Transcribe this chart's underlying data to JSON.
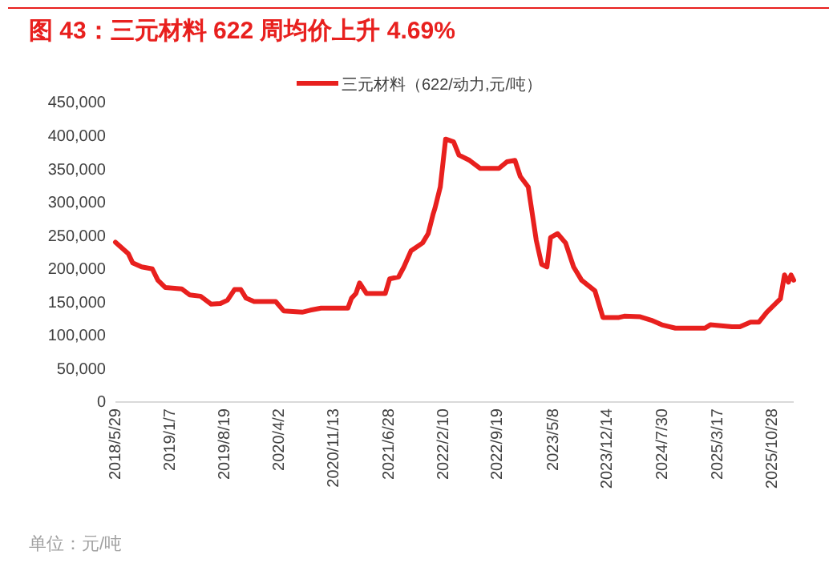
{
  "chart_data": {
    "type": "line",
    "title": "图 43：三元材料 622 周均价上升 4.69%",
    "annotations": [
      "单位：元/吨"
    ],
    "x": [
      "2018-05-29",
      "2018-07-21",
      "2018-08-08",
      "2018-09-14",
      "2018-10-28",
      "2018-11-20",
      "2018-12-21",
      "2019-02-26",
      "2019-03-31",
      "2019-05-15",
      "2019-06-28",
      "2019-08-05",
      "2019-09-03",
      "2019-10-02",
      "2019-10-28",
      "2019-11-19",
      "2019-12-22",
      "2020-03-20",
      "2020-04-22",
      "2020-07-07",
      "2020-08-10",
      "2020-09-23",
      "2021-01-12",
      "2021-01-27",
      "2021-02-14",
      "2021-03-01",
      "2021-03-30",
      "2021-06-15",
      "2021-07-03",
      "2021-08-09",
      "2021-08-31",
      "2021-09-29",
      "2021-11-16",
      "2021-12-09",
      "2021-12-30",
      "2022-01-06",
      "2022-01-28",
      "2022-02-19",
      "2022-03-24",
      "2022-04-15",
      "2022-05-29",
      "2022-07-12",
      "2022-09-27",
      "2022-10-30",
      "2022-12-02",
      "2022-12-24",
      "2023-01-26",
      "2023-02-28",
      "2023-03-22",
      "2023-04-13",
      "2023-04-28",
      "2023-05-27",
      "2023-06-29",
      "2023-08-01",
      "2023-09-03",
      "2023-10-28",
      "2023-11-30",
      "2024-02-04",
      "2024-02-26",
      "2024-05-02",
      "2024-06-16",
      "2024-07-30",
      "2024-09-24",
      "2025-01-24",
      "2025-02-15",
      "2025-05-15",
      "2025-06-17",
      "2025-07-31",
      "2025-09-03",
      "2025-10-06",
      "2025-12-01",
      "2025-12-18",
      "2026-01-03",
      "2026-01-14",
      "2026-01-25"
    ],
    "series": [
      {
        "name": "三元材料（622/动力,元/吨）",
        "color": "#e8201e",
        "values": [
          240000,
          223000,
          209000,
          203000,
          200000,
          183000,
          172000,
          170000,
          161000,
          159000,
          147000,
          148000,
          153000,
          169000,
          169000,
          156000,
          151000,
          151000,
          137000,
          135000,
          138000,
          141000,
          141000,
          156000,
          163000,
          179000,
          163000,
          163000,
          185000,
          188000,
          203000,
          227000,
          239000,
          253000,
          283000,
          291000,
          323000,
          395000,
          391000,
          371000,
          363000,
          351000,
          351000,
          361000,
          363000,
          339000,
          323000,
          243000,
          207000,
          203000,
          247000,
          253000,
          239000,
          203000,
          183000,
          167000,
          127000,
          127000,
          129000,
          128000,
          123000,
          116000,
          111000,
          111000,
          116000,
          113000,
          113000,
          120000,
          120000,
          135000,
          155000,
          191000,
          180000,
          191000,
          183000
        ]
      }
    ],
    "xlim": [
      "2018-05-29",
      "2026-01-25"
    ],
    "xticks": [
      {
        "value": "2018-05-29",
        "label": "2018/5/29"
      },
      {
        "value": "2019-01-07",
        "label": "2019/1/7"
      },
      {
        "value": "2019-08-19",
        "label": "2019/8/19"
      },
      {
        "value": "2020-04-02",
        "label": "2020/4/2"
      },
      {
        "value": "2020-11-13",
        "label": "2020/11/13"
      },
      {
        "value": "2021-06-28",
        "label": "2021/6/28"
      },
      {
        "value": "2022-02-10",
        "label": "2022/2/10"
      },
      {
        "value": "2022-09-19",
        "label": "2022/9/19"
      },
      {
        "value": "2023-05-08",
        "label": "2023/5/8"
      },
      {
        "value": "2023-12-14",
        "label": "2023/12/14"
      },
      {
        "value": "2024-07-30",
        "label": "2024/7/30"
      },
      {
        "value": "2025-03-17",
        "label": "2025/3/17"
      },
      {
        "value": "2025-10-28",
        "label": "2025/10/28"
      }
    ],
    "ylim": [
      0,
      450000
    ],
    "yticks": [
      {
        "value": 0,
        "label": "0"
      },
      {
        "value": 50000,
        "label": "50,000"
      },
      {
        "value": 100000,
        "label": "100,000"
      },
      {
        "value": 150000,
        "label": "150,000"
      },
      {
        "value": 200000,
        "label": "200,000"
      },
      {
        "value": 250000,
        "label": "250,000"
      },
      {
        "value": 300000,
        "label": "300,000"
      },
      {
        "value": 350000,
        "label": "350,000"
      },
      {
        "value": 400000,
        "label": "400,000"
      },
      {
        "value": 450000,
        "label": "450,000"
      }
    ],
    "legend": "top",
    "grid": false,
    "marker": "none",
    "line_style": "solid"
  }
}
